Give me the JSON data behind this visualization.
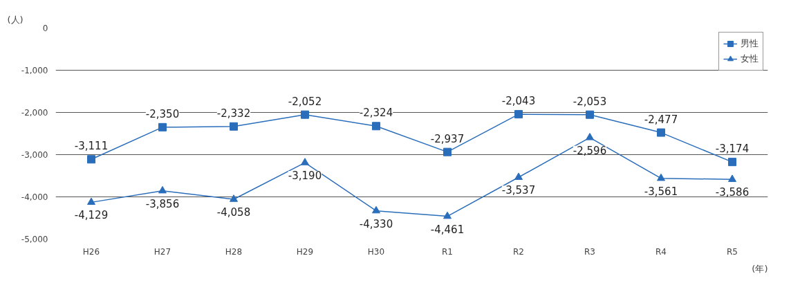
{
  "chart_data": {
    "type": "line",
    "ylabel": "(人)",
    "xlabel": "(年)",
    "categories": [
      "H26",
      "H27",
      "H28",
      "H29",
      "H30",
      "R1",
      "R2",
      "R3",
      "R4",
      "R5"
    ],
    "series": [
      {
        "name": "男性",
        "color": "#2a6ebb",
        "marker": "square",
        "values": [
          -3111,
          -2350,
          -2332,
          -2052,
          -2324,
          -2937,
          -2043,
          -2053,
          -2477,
          -3174
        ],
        "value_labels": [
          "-3,111",
          "-2,350",
          "-2,332",
          "-2,052",
          "-2,324",
          "-2,937",
          "-2,043",
          "-2,053",
          "-2,477",
          "-3,174"
        ]
      },
      {
        "name": "女性",
        "color": "#2a6ebb",
        "marker": "triangle",
        "values": [
          -4129,
          -3856,
          -4058,
          -3190,
          -4330,
          -4461,
          -3537,
          -2596,
          -3561,
          -3586
        ],
        "value_labels": [
          "-4,129",
          "-3,856",
          "-4,058",
          "-3,190",
          "-4,330",
          "-4,461",
          "-3,537",
          "-2,596",
          "-3,561",
          "-3,586"
        ]
      }
    ],
    "ylim": [
      -5000,
      0
    ],
    "yticks": [
      {
        "value": 0,
        "label": "0"
      },
      {
        "value": -1000,
        "label": "-1,000"
      },
      {
        "value": -2000,
        "label": "-2,000"
      },
      {
        "value": -3000,
        "label": "-3,000"
      },
      {
        "value": -4000,
        "label": "-4,000"
      },
      {
        "value": -5000,
        "label": "-5,000"
      }
    ],
    "grid": "y",
    "legend": "top right",
    "line_style": "solid"
  }
}
